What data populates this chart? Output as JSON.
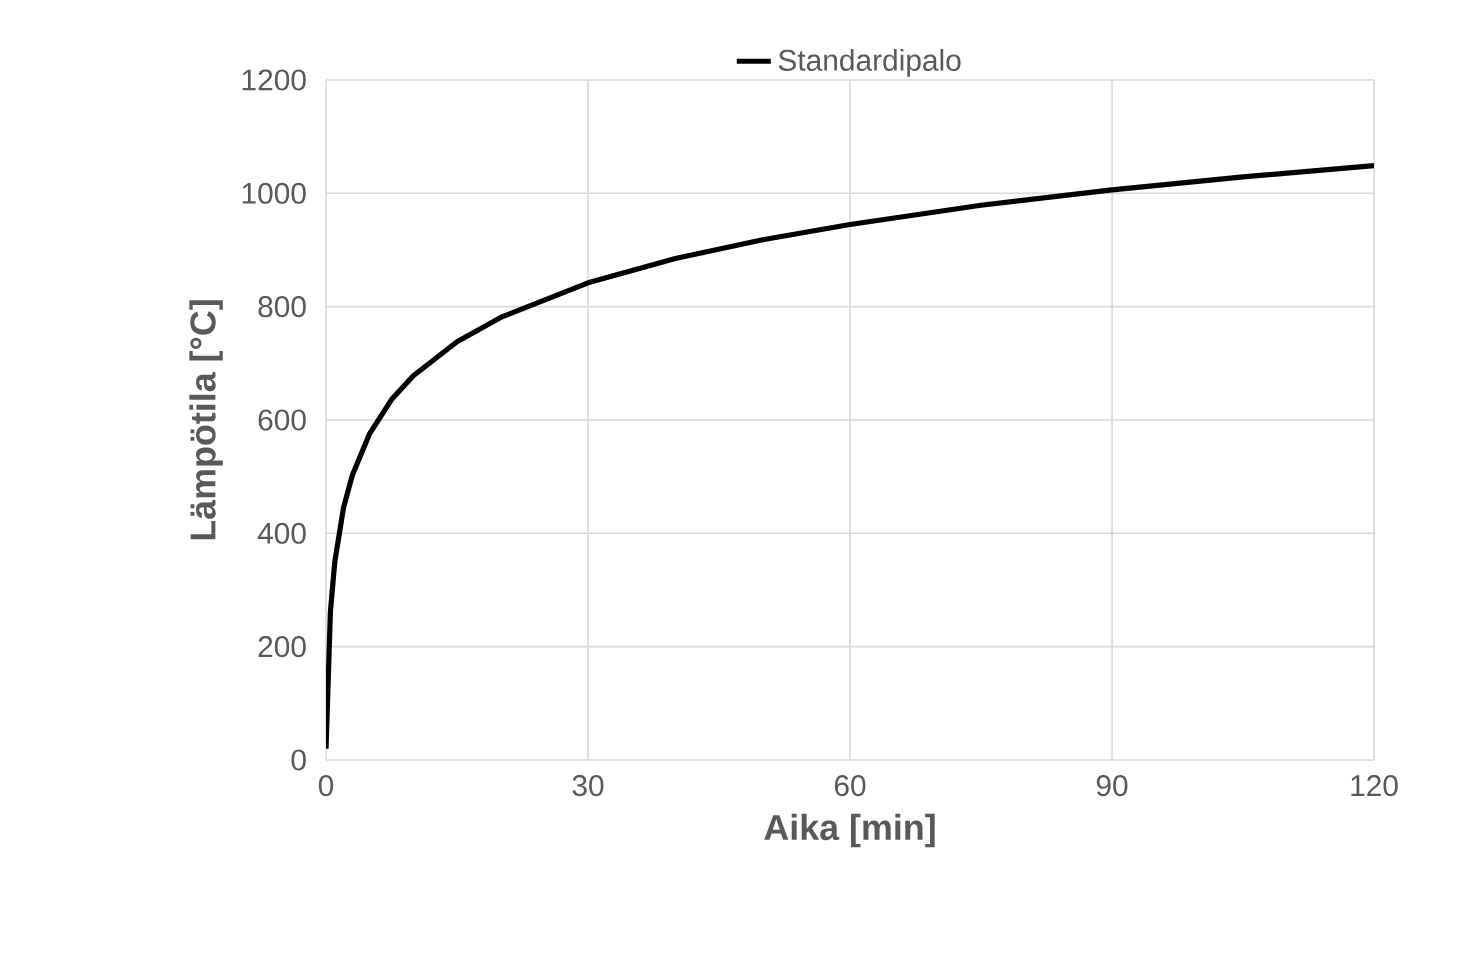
{
  "chart_data": {
    "type": "line",
    "xlabel": "Aika [min]",
    "ylabel": "Lämpötila [°C]",
    "xlim": [
      0,
      120
    ],
    "ylim": [
      0,
      1200
    ],
    "xticks": [
      0,
      30,
      60,
      90,
      120
    ],
    "yticks": [
      0,
      200,
      400,
      600,
      800,
      1000,
      1200
    ],
    "grid": true,
    "legend": "top",
    "marker": "none",
    "line_style": "solid",
    "series": [
      {
        "name": "Standardipalo",
        "color": "#000000",
        "x": [
          0,
          0.5,
          1,
          2,
          3,
          5,
          7.5,
          10,
          15,
          20,
          30,
          40,
          50,
          60,
          75,
          90,
          105,
          120
        ],
        "values": [
          20,
          261,
          349,
          445,
          502,
          576,
          636,
          678,
          738,
          781,
          842,
          885,
          918,
          945,
          979,
          1006,
          1029,
          1049
        ]
      }
    ]
  }
}
